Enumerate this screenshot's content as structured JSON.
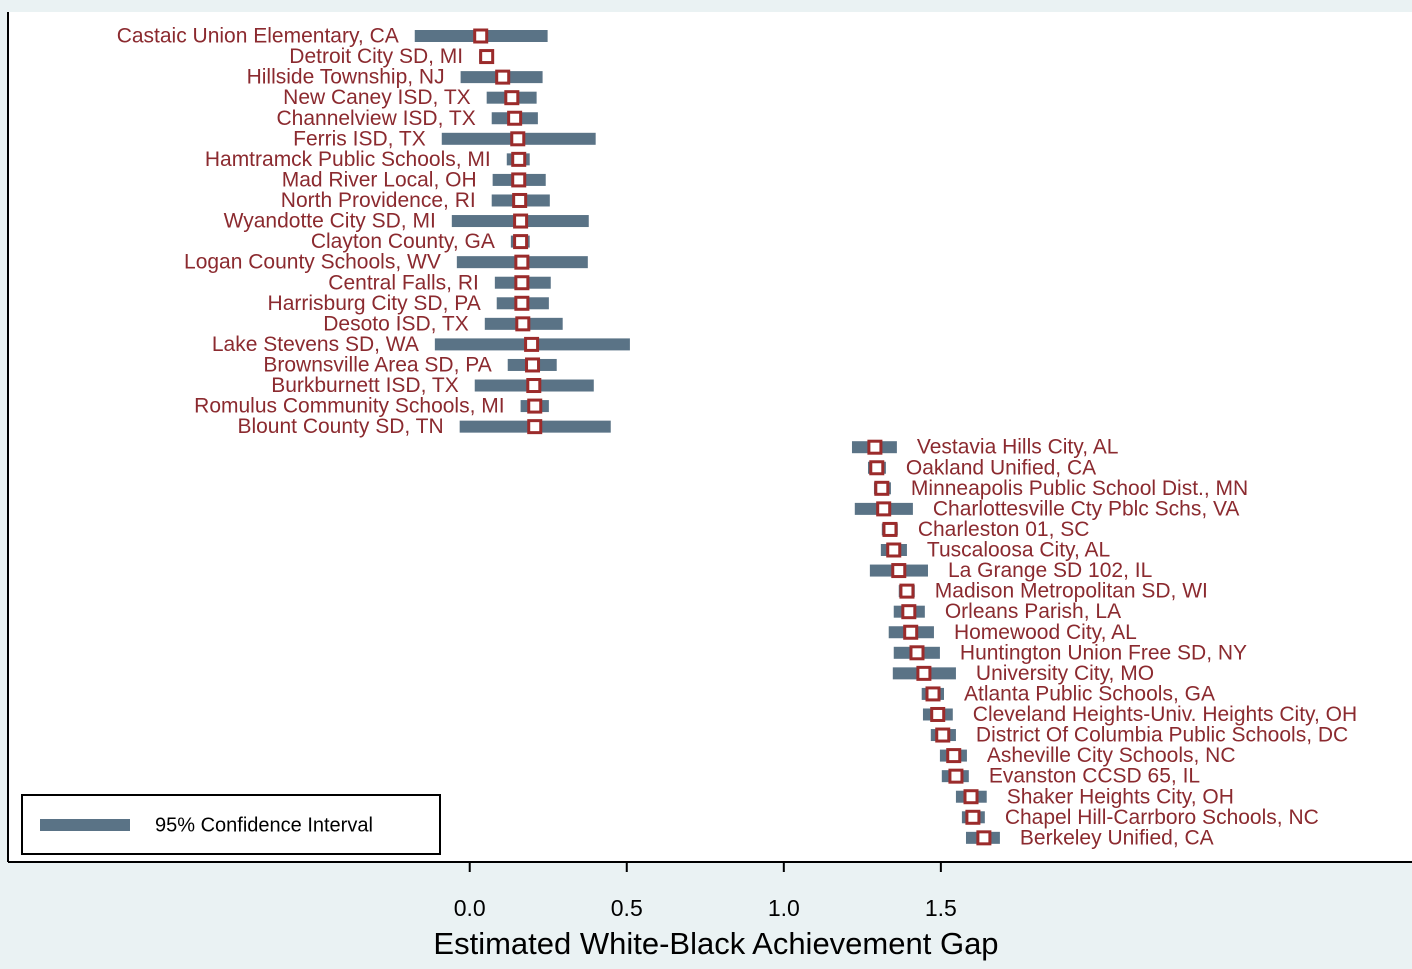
{
  "chart_data": {
    "type": "ci-dotplot",
    "x_label": "Estimated White-Black Achievement Gap",
    "categories": [
      "Castaic Union Elementary, CA",
      "Detroit City SD, MI",
      "Hillside Township, NJ",
      "New Caney ISD, TX",
      "Channelview ISD, TX",
      "Ferris ISD, TX",
      "Hamtramck Public Schools, MI",
      "Mad River Local, OH",
      "North Providence, RI",
      "Wyandotte City SD, MI",
      "Clayton County, GA",
      "Logan County Schools, WV",
      "Central Falls, RI",
      "Harrisburg City SD, PA",
      "Desoto ISD, TX",
      "Lake Stevens SD, WA",
      "Brownsville Area SD, PA",
      "Burkburnett ISD, TX",
      "Romulus Community Schools, MI",
      "Blount County SD, TN",
      "Vestavia Hills City, AL",
      "Oakland Unified, CA",
      "Minneapolis Public School Dist., MN",
      "Charlottesville Cty Pblc Schs, VA",
      "Charleston 01, SC",
      "Tuscaloosa City, AL",
      "La Grange SD 102, IL",
      "Madison Metropolitan SD, WI",
      "Orleans Parish, LA",
      "Homewood City, AL",
      "Huntington Union Free SD, NY",
      "University City, MO",
      "Atlanta Public Schools, GA",
      "Cleveland Heights-Univ. Heights City, OH",
      "District Of Columbia Public Schools, DC",
      "Asheville City Schools, NC",
      "Evanston CCSD 65, IL",
      "Shaker Heights City, OH",
      "Chapel Hill-Carrboro Schools, NC",
      "Berkeley Unified, CA"
    ],
    "values": [
      0.035,
      0.054,
      0.105,
      0.134,
      0.143,
      0.153,
      0.156,
      0.156,
      0.159,
      0.162,
      0.162,
      0.166,
      0.166,
      0.166,
      0.169,
      0.197,
      0.2,
      0.204,
      0.207,
      0.207,
      1.29,
      1.296,
      1.312,
      1.318,
      1.338,
      1.35,
      1.366,
      1.392,
      1.398,
      1.404,
      1.424,
      1.446,
      1.475,
      1.49,
      1.506,
      1.541,
      1.548,
      1.596,
      1.602,
      1.637
    ],
    "ci_low": [
      -0.175,
      0.03,
      -0.029,
      0.054,
      0.07,
      -0.089,
      0.118,
      0.073,
      0.07,
      -0.057,
      0.131,
      -0.041,
      0.08,
      0.086,
      0.048,
      -0.111,
      0.121,
      0.016,
      0.162,
      -0.032,
      1.217,
      1.268,
      1.287,
      1.226,
      1.312,
      1.309,
      1.274,
      1.366,
      1.35,
      1.334,
      1.35,
      1.347,
      1.439,
      1.443,
      1.468,
      1.497,
      1.503,
      1.548,
      1.567,
      1.58
    ],
    "ci_high": [
      0.248,
      0.075,
      0.232,
      0.213,
      0.217,
      0.401,
      0.191,
      0.242,
      0.255,
      0.379,
      0.191,
      0.376,
      0.258,
      0.252,
      0.296,
      0.51,
      0.277,
      0.395,
      0.252,
      0.449,
      1.36,
      1.325,
      1.341,
      1.411,
      1.363,
      1.392,
      1.459,
      1.417,
      1.449,
      1.478,
      1.497,
      1.548,
      1.51,
      1.538,
      1.548,
      1.583,
      1.589,
      1.646,
      1.64,
      1.688
    ],
    "ci_name": "95% Confidence Interval",
    "ci_color": "#5a7386",
    "marker_color": "#9b2b2b",
    "xlim": [
      -1.47,
      3.0
    ],
    "xticks": [
      {
        "value": 0,
        "label": "0.0"
      },
      0.5,
      {
        "value": 1,
        "label": "1.0"
      },
      1.5
    ],
    "legend": "bottom-left"
  }
}
